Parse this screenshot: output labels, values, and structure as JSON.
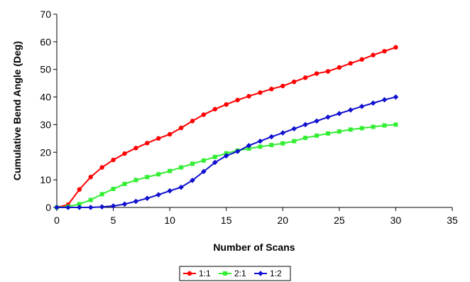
{
  "chart_data": {
    "type": "line",
    "title": "",
    "xlabel": "Number of Scans",
    "ylabel": "Cumulative Bend Angle (Deg)",
    "xlim": [
      0,
      35
    ],
    "ylim": [
      0,
      70
    ],
    "x_ticks": [
      "0",
      "5",
      "10",
      "15",
      "20",
      "25",
      "30",
      "35"
    ],
    "y_ticks": [
      "0",
      "10",
      "20",
      "30",
      "40",
      "50",
      "60",
      "70"
    ],
    "grid": false,
    "legend": "bottom-center",
    "series": [
      {
        "name": "1:1",
        "color": "#ff0000",
        "marker": "circle",
        "x": [
          0,
          1,
          2,
          3,
          4,
          5,
          6,
          7,
          8,
          9,
          10,
          11,
          12,
          13,
          14,
          15,
          16,
          17,
          18,
          19,
          20,
          21,
          22,
          23,
          24,
          25,
          26,
          27,
          28,
          29,
          30
        ],
        "y": [
          0,
          1.0,
          6.5,
          11.0,
          14.5,
          17.2,
          19.5,
          21.5,
          23.3,
          25.0,
          26.5,
          28.8,
          31.3,
          33.6,
          35.6,
          37.3,
          38.9,
          40.3,
          41.6,
          42.9,
          44.0,
          45.5,
          47.0,
          48.5,
          49.3,
          50.7,
          52.2,
          53.6,
          55.2,
          56.6,
          58.0
        ]
      },
      {
        "name": "2:1",
        "color": "#33ee33",
        "marker": "square",
        "x": [
          0,
          1,
          2,
          3,
          4,
          5,
          6,
          7,
          8,
          9,
          10,
          11,
          12,
          13,
          14,
          15,
          16,
          17,
          18,
          19,
          20,
          21,
          22,
          23,
          24,
          25,
          26,
          27,
          28,
          29,
          30
        ],
        "y": [
          0,
          0.3,
          1.2,
          2.7,
          4.8,
          6.7,
          8.5,
          9.9,
          11.0,
          12.0,
          13.2,
          14.5,
          15.8,
          17.0,
          18.3,
          19.6,
          20.6,
          21.3,
          22.0,
          22.6,
          23.2,
          24.0,
          25.2,
          26.0,
          26.8,
          27.5,
          28.2,
          28.7,
          29.2,
          29.7,
          30.0
        ]
      },
      {
        "name": "1:2",
        "color": "#1010d0",
        "marker": "diamond",
        "x": [
          0,
          1,
          2,
          3,
          4,
          5,
          6,
          7,
          8,
          9,
          10,
          11,
          12,
          13,
          14,
          15,
          16,
          17,
          18,
          19,
          20,
          21,
          22,
          23,
          24,
          25,
          26,
          27,
          28,
          29,
          30
        ],
        "y": [
          0,
          0,
          0,
          0,
          0.2,
          0.5,
          1.2,
          2.2,
          3.3,
          4.6,
          6.0,
          7.3,
          9.8,
          13.0,
          16.3,
          18.7,
          20.3,
          22.4,
          24.0,
          25.6,
          27.0,
          28.5,
          30.0,
          31.3,
          32.7,
          34.0,
          35.3,
          36.6,
          37.8,
          39.0,
          40.0
        ]
      }
    ]
  }
}
